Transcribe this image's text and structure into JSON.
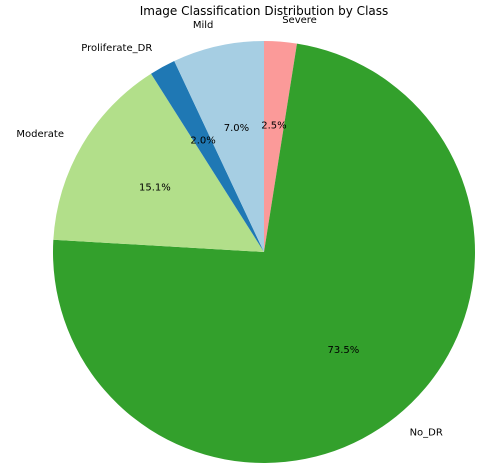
{
  "chart_data": {
    "type": "pie",
    "title": "Image Classification Distribution by Class",
    "slices": [
      {
        "label": "Severe",
        "percent": 2.5,
        "pct_label": "2.5%",
        "color": "#fb9a99"
      },
      {
        "label": "No_DR",
        "percent": 73.5,
        "pct_label": "73.5%",
        "color": "#33a02c"
      },
      {
        "label": "Moderate",
        "percent": 15.1,
        "pct_label": "15.1%",
        "color": "#b2df8a"
      },
      {
        "label": "Proliferate_DR",
        "percent": 2.0,
        "pct_label": "2.0%",
        "color": "#1f78b4"
      },
      {
        "label": "Mild",
        "percent": 7.0,
        "pct_label": "7.0%",
        "color": "#a6cee3"
      }
    ],
    "start_angle": "90° (12 o'clock)",
    "direction": "clockwise",
    "legend": "none"
  }
}
